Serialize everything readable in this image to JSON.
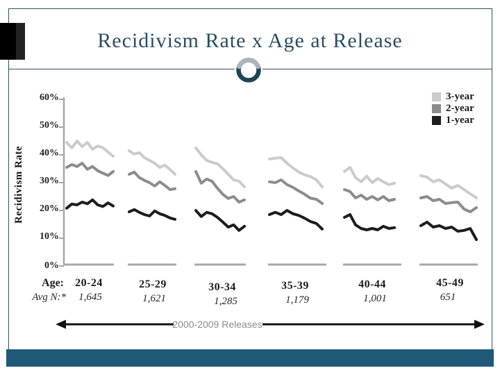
{
  "slide": {
    "title": "Recidivism Rate x Age at Release"
  },
  "chart_data": {
    "type": "line",
    "title": "Recidivism Rate x Age at Release",
    "ylabel": "Recidivism Rate",
    "ylim": [
      0,
      60
    ],
    "ytick_labels": [
      "60%",
      "50%",
      "40%",
      "30%",
      "20%",
      "10%",
      "0%"
    ],
    "row_labels": {
      "age": "Age:",
      "avg_n": "Avg N:*"
    },
    "x_years": [
      2000,
      2001,
      2002,
      2003,
      2004,
      2005,
      2006,
      2007,
      2008,
      2009
    ],
    "x_annotation": "2000-2009 Releases",
    "legend_position": "top-right",
    "grid": false,
    "legend": [
      {
        "name": "3-year",
        "color": "#cbcbcb"
      },
      {
        "name": "2-year",
        "color": "#8c8c8c"
      },
      {
        "name": "1-year",
        "color": "#1c1c1c"
      }
    ],
    "groups": [
      {
        "label": "20-24",
        "avg_n": "1,645",
        "series": {
          "3-year": [
            44.5,
            42.5,
            45.0,
            43.0,
            44.5,
            42.0,
            43.2,
            42.6,
            41.0,
            39.5
          ],
          "2-year": [
            35.5,
            36.5,
            35.8,
            37.0,
            34.8,
            35.8,
            34.3,
            33.4,
            32.6,
            34.0
          ],
          "1-year": [
            20.8,
            22.3,
            22.0,
            23.0,
            22.4,
            23.8,
            22.0,
            21.4,
            22.7,
            21.6
          ]
        }
      },
      {
        "label": "25-29",
        "avg_n": "1,621",
        "series": {
          "3-year": [
            41.5,
            40.3,
            40.8,
            39.0,
            38.0,
            37.0,
            35.5,
            36.3,
            34.8,
            33.0
          ],
          "2-year": [
            33.0,
            33.8,
            31.8,
            30.8,
            30.0,
            28.8,
            30.3,
            29.0,
            27.5,
            27.8
          ],
          "1-year": [
            19.5,
            20.3,
            19.3,
            18.5,
            18.0,
            19.8,
            18.8,
            18.2,
            17.3,
            16.8
          ]
        }
      },
      {
        "label": "30-34",
        "avg_n": "1,285",
        "series": {
          "3-year": [
            42.5,
            40.0,
            38.0,
            37.3,
            36.8,
            35.0,
            33.0,
            31.0,
            30.5,
            28.5
          ],
          "2-year": [
            34.0,
            29.8,
            31.3,
            30.5,
            28.0,
            25.8,
            24.3,
            25.0,
            23.0,
            23.8
          ],
          "1-year": [
            20.0,
            17.8,
            19.3,
            18.8,
            17.5,
            15.8,
            14.0,
            14.8,
            12.8,
            14.3
          ]
        }
      },
      {
        "label": "35-39",
        "avg_n": "1,179",
        "series": {
          "3-year": [
            38.5,
            38.8,
            39.0,
            37.0,
            35.3,
            33.8,
            32.8,
            32.2,
            31.0,
            28.5
          ],
          "2-year": [
            30.3,
            30.0,
            31.0,
            29.3,
            28.3,
            27.0,
            25.8,
            24.4,
            24.0,
            22.5
          ],
          "1-year": [
            18.5,
            19.3,
            18.5,
            20.0,
            18.8,
            18.2,
            17.2,
            16.0,
            15.3,
            13.3
          ]
        }
      },
      {
        "label": "40-44",
        "avg_n": "1,001",
        "series": {
          "3-year": [
            34.0,
            35.5,
            31.8,
            30.3,
            32.3,
            30.0,
            31.5,
            30.3,
            29.3,
            29.8
          ],
          "2-year": [
            27.5,
            26.8,
            24.5,
            25.5,
            24.0,
            25.0,
            23.8,
            25.0,
            23.5,
            24.0
          ],
          "1-year": [
            17.5,
            18.5,
            14.8,
            13.5,
            13.0,
            13.5,
            13.0,
            14.3,
            13.5,
            13.8
          ]
        }
      },
      {
        "label": "45-49",
        "avg_n": "651",
        "series": {
          "3-year": [
            32.5,
            32.0,
            30.3,
            31.0,
            29.5,
            28.0,
            29.0,
            27.5,
            26.0,
            24.5
          ],
          "2-year": [
            24.5,
            25.0,
            23.5,
            24.0,
            22.5,
            22.8,
            23.0,
            20.5,
            19.5,
            21.0
          ],
          "1-year": [
            14.5,
            15.8,
            14.0,
            14.5,
            13.5,
            14.0,
            12.5,
            12.8,
            13.5,
            9.5
          ]
        }
      }
    ]
  },
  "colors": {
    "accent_teal": "#2b4d61",
    "bar_teal": "#205978",
    "axis_gray": "#a8a8a8",
    "annotation_gray": "#8c8c8c",
    "arrow_black": "#111111"
  }
}
